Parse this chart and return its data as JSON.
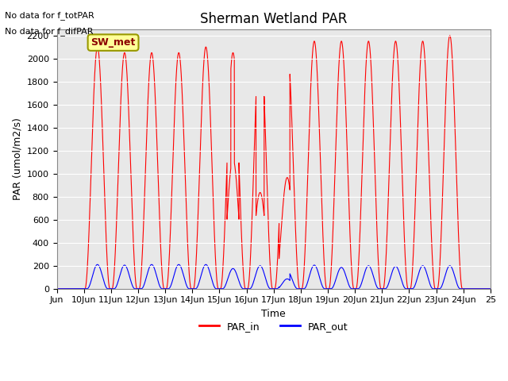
{
  "title": "Sherman Wetland PAR",
  "xlabel": "Time",
  "ylabel": "PAR (umol/m2/s)",
  "ylim": [
    0,
    2250
  ],
  "xlim_start": 9.0,
  "xlim_end": 25.0,
  "annotation1": "No data for f_totPAR",
  "annotation2": "No data for f_difPAR",
  "station_label": "SW_met",
  "station_label_color": "#8B0000",
  "station_box_facecolor": "#FFFF99",
  "station_box_edgecolor": "#999900",
  "line_color_in": "red",
  "line_color_out": "blue",
  "background_color": "#E8E8E8",
  "grid_color": "white",
  "yticks": [
    0,
    200,
    400,
    600,
    800,
    1000,
    1200,
    1400,
    1600,
    1800,
    2000,
    2200
  ],
  "title_fontsize": 12,
  "label_fontsize": 9,
  "tick_fontsize": 8,
  "legend_fontsize": 9
}
